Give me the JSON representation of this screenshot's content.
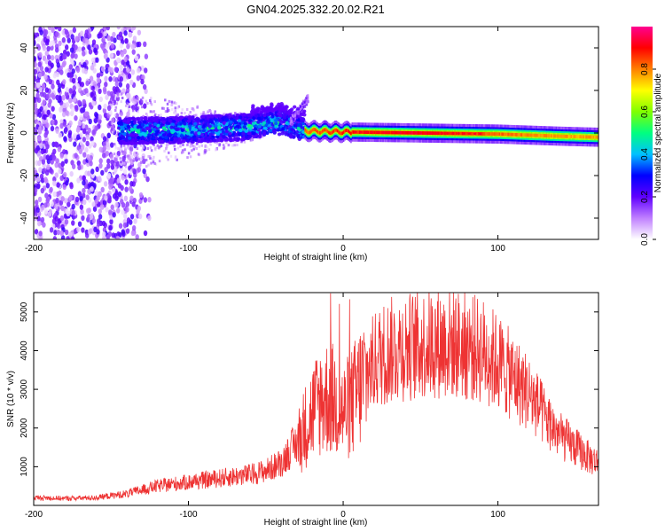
{
  "title": "GN04.2025.332.20.02.R21",
  "chart_data": [
    {
      "type": "heatmap",
      "xlabel": "Height of straight line (km)",
      "ylabel": "Frequency (Hz)",
      "xlim": [
        -200,
        165
      ],
      "ylim": [
        -50,
        50
      ],
      "xticks": [
        -200,
        -100,
        0,
        100
      ],
      "yticks": [
        -40,
        -20,
        0,
        20,
        40
      ],
      "colorbar": {
        "label": "Normalized spectral amplitude",
        "range": [
          0,
          1
        ],
        "ticks": [
          0.0,
          0.2,
          0.4,
          0.6,
          0.8
        ],
        "colors": [
          "#ffffff",
          "#c080ff",
          "#6000ff",
          "#0000ff",
          "#00c0ff",
          "#00ff80",
          "#80ff00",
          "#ffff00",
          "#ff8000",
          "#ff0000",
          "#ff0090"
        ]
      },
      "ridge": [
        {
          "x": -140,
          "f": 1.0,
          "amp": 0.45
        },
        {
          "x": -100,
          "f": 1.5,
          "amp": 0.5
        },
        {
          "x": -60,
          "f": 3.0,
          "amp": 0.5
        },
        {
          "x": -40,
          "f": 5.0,
          "amp": 0.55
        },
        {
          "x": -25,
          "f": 1.0,
          "amp": 0.85
        },
        {
          "x": 0,
          "f": 0.5,
          "amp": 0.9
        },
        {
          "x": 50,
          "f": 0.0,
          "amp": 0.95
        },
        {
          "x": 100,
          "f": -0.5,
          "amp": 0.85
        },
        {
          "x": 140,
          "f": -1.5,
          "amp": 0.8
        },
        {
          "x": 165,
          "f": -2.0,
          "amp": 0.8
        }
      ]
    },
    {
      "type": "line",
      "xlabel": "Height of straight line (km)",
      "ylabel": "SNR (10 * v/v)",
      "xlim": [
        -200,
        165
      ],
      "ylim": [
        0,
        5500
      ],
      "xticks": [
        -200,
        -100,
        0,
        100
      ],
      "yticks": [
        1000,
        2000,
        3000,
        4000,
        5000
      ],
      "color": "#ee3333",
      "series": [
        {
          "name": "SNR",
          "x": [
            -200,
            -180,
            -160,
            -150,
            -140,
            -130,
            -120,
            -110,
            -100,
            -90,
            -80,
            -70,
            -60,
            -50,
            -40,
            -35,
            -30,
            -25,
            -20,
            -15,
            -10,
            -5,
            0,
            5,
            10,
            15,
            20,
            25,
            30,
            40,
            50,
            60,
            70,
            80,
            90,
            100,
            110,
            120,
            130,
            140,
            150,
            160,
            165
          ],
          "values": [
            200,
            180,
            200,
            250,
            300,
            400,
            500,
            550,
            600,
            650,
            700,
            750,
            800,
            900,
            1100,
            1400,
            1600,
            2000,
            2400,
            2700,
            2800,
            2700,
            2400,
            2600,
            3000,
            3400,
            3700,
            3900,
            4000,
            4100,
            4150,
            4200,
            4200,
            4100,
            4000,
            3700,
            3300,
            2900,
            2300,
            1800,
            1500,
            1200,
            1100
          ]
        }
      ]
    }
  ]
}
